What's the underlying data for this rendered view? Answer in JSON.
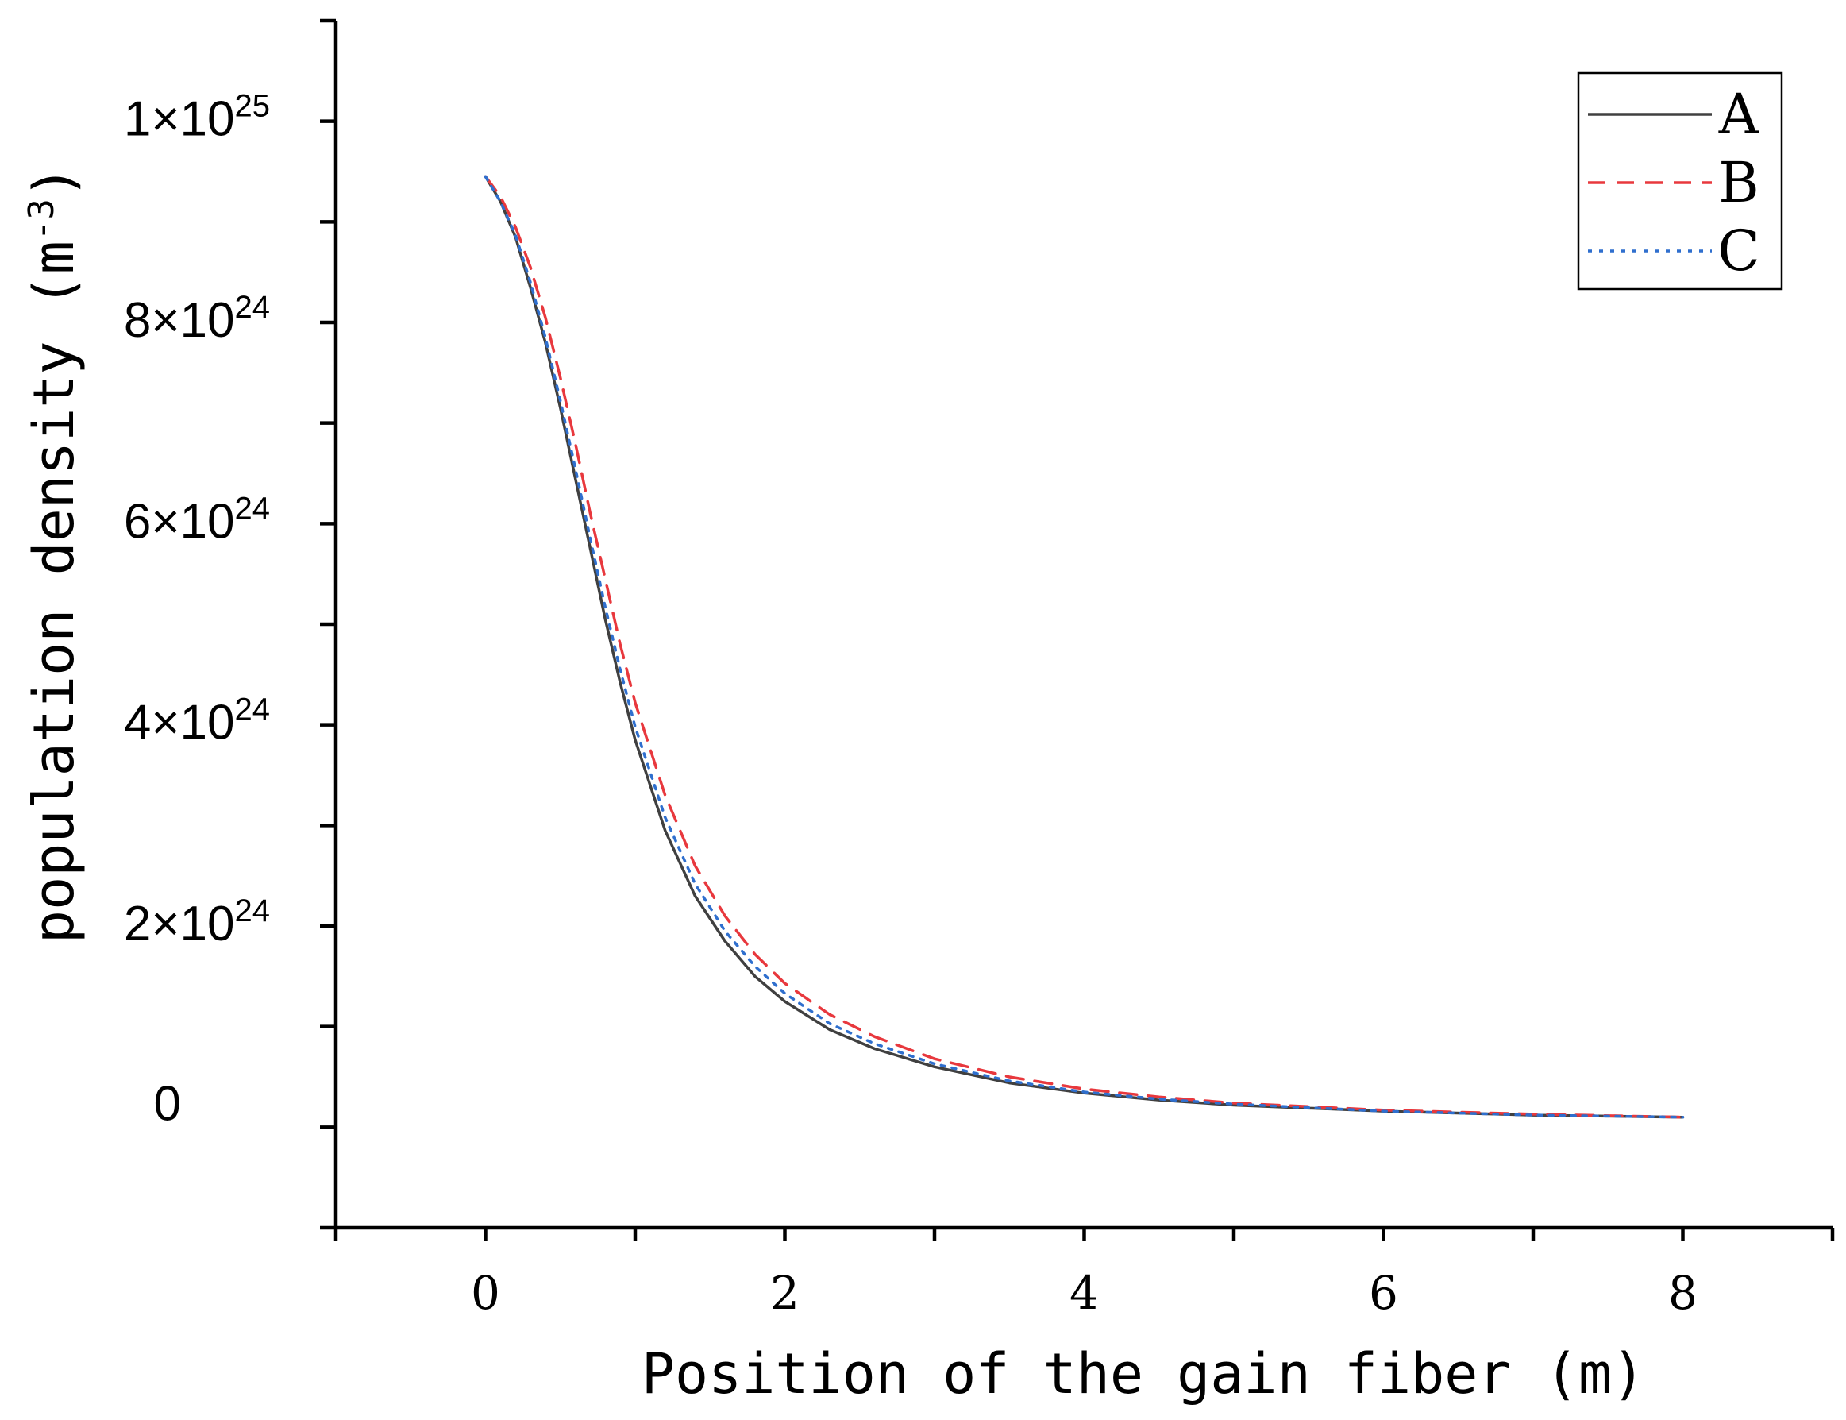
{
  "chart_data": {
    "type": "line",
    "title": "",
    "xlabel": "Position of the gain fiber (m)",
    "ylabel": "population density (m-3)",
    "ylabel_base": "population density (m",
    "ylabel_exp": "-3",
    "ylabel_close": ")",
    "xlim": [
      -1,
      9
    ],
    "ylim": [
      -1e+24,
      1.1e+25
    ],
    "x_ticks": [
      0,
      2,
      4,
      6,
      8
    ],
    "x_tick_labels": [
      "0",
      "2",
      "4",
      "6",
      "8"
    ],
    "y_ticks": [
      0,
      2e+24,
      4e+24,
      6e+24,
      8e+24,
      1e+25
    ],
    "y_tick_labels": [
      {
        "text": "0",
        "base": "0",
        "exp": ""
      },
      {
        "text": "2×10^24",
        "base": "2×10",
        "exp": "24"
      },
      {
        "text": "4×10^24",
        "base": "4×10",
        "exp": "24"
      },
      {
        "text": "6×10^24",
        "base": "6×10",
        "exp": "24"
      },
      {
        "text": "8×10^24",
        "base": "8×10",
        "exp": "24"
      },
      {
        "text": "1×10^25",
        "base": "1×10",
        "exp": "25"
      }
    ],
    "grid": false,
    "legend_position": "top-right",
    "x": [
      0,
      0.1,
      0.2,
      0.3,
      0.4,
      0.5,
      0.6,
      0.7,
      0.8,
      0.9,
      1.0,
      1.2,
      1.4,
      1.6,
      1.8,
      2.0,
      2.3,
      2.6,
      3.0,
      3.5,
      4.0,
      4.5,
      5.0,
      6.0,
      7.0,
      8.0
    ],
    "series": [
      {
        "name": "A",
        "color": "#404040",
        "dash": "solid",
        "values": [
          9.45e+24,
          9.2e+24,
          8.85e+24,
          8.35e+24,
          7.8e+24,
          7.15e+24,
          6.45e+24,
          5.75e+24,
          5.05e+24,
          4.42e+24,
          3.85e+24,
          2.95e+24,
          2.3e+24,
          1.85e+24,
          1.5e+24,
          1.25e+24,
          9.7e+23,
          7.8e+23,
          6e+23,
          4.4e+23,
          3.4e+23,
          2.7e+23,
          2.2e+23,
          1.6e+23,
          1.2e+23,
          1e+23
        ]
      },
      {
        "name": "B",
        "color": "#e8383d",
        "dash": "dashed",
        "values": [
          9.45e+24,
          9.25e+24,
          8.95e+24,
          8.55e+24,
          8.05e+24,
          7.45e+24,
          6.8e+24,
          6.1e+24,
          5.45e+24,
          4.8e+24,
          4.22e+24,
          3.3e+24,
          2.6e+24,
          2.1e+24,
          1.72e+24,
          1.43e+24,
          1.12e+24,
          9e+23,
          6.8e+23,
          5e+23,
          3.8e+23,
          3e+23,
          2.4e+23,
          1.7e+23,
          1.3e+23,
          1e+23
        ]
      },
      {
        "name": "C",
        "color": "#2f6fce",
        "dash": "dotted",
        "values": [
          9.45e+24,
          9.2e+24,
          8.87e+24,
          8.4e+24,
          7.85e+24,
          7.22e+24,
          6.55e+24,
          5.85e+24,
          5.17e+24,
          4.55e+24,
          3.98e+24,
          3.08e+24,
          2.42e+24,
          1.95e+24,
          1.6e+24,
          1.33e+24,
          1.03e+24,
          8.3e+23,
          6.3e+23,
          4.6e+23,
          3.5e+23,
          2.8e+23,
          2.3e+23,
          1.6e+23,
          1.2e+23,
          1e+23
        ]
      }
    ]
  }
}
